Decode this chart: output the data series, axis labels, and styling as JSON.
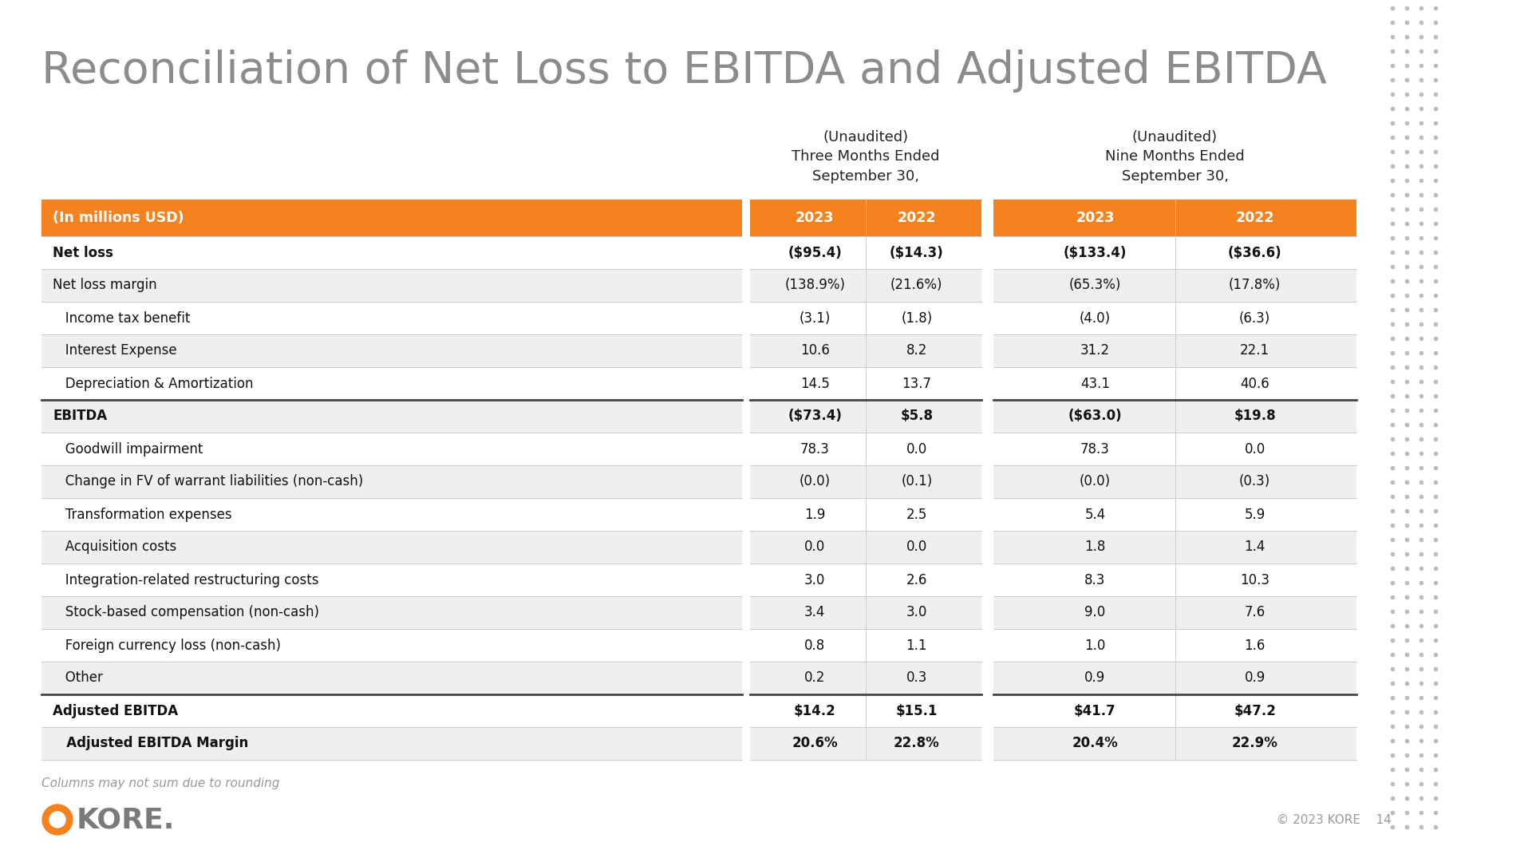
{
  "title": "Reconciliation of Net Loss to EBITDA and Adjusted EBITDA",
  "title_color": "#8c8c8c",
  "background_color": "#ffffff",
  "orange_color": "#F5821F",
  "header_text_color": "#ffffff",
  "col_header_unaudited_3m": "(Unaudited)\nThree Months Ended\nSeptember 30,",
  "col_header_unaudited_9m": "(Unaudited)\nNine Months Ended\nSeptember 30,",
  "columns": [
    "(In millions USD)",
    "2023",
    "2022",
    "2023",
    "2022"
  ],
  "rows": [
    {
      "label": "Net loss",
      "bold": true,
      "indent": false,
      "vals": [
        "($95.4)",
        "($14.3)",
        "($133.4)",
        "($36.6)"
      ],
      "val_bold": true
    },
    {
      "label": "Net loss margin",
      "bold": false,
      "indent": false,
      "vals": [
        "(138.9%)",
        "(21.6%)",
        "(65.3%)",
        "(17.8%)"
      ],
      "val_bold": false
    },
    {
      "label": "   Income tax benefit",
      "bold": false,
      "indent": false,
      "vals": [
        "(3.1)",
        "(1.8)",
        "(4.0)",
        "(6.3)"
      ],
      "val_bold": false
    },
    {
      "label": "   Interest Expense",
      "bold": false,
      "indent": false,
      "vals": [
        "10.6",
        "8.2",
        "31.2",
        "22.1"
      ],
      "val_bold": false
    },
    {
      "label": "   Depreciation & Amortization",
      "bold": false,
      "indent": false,
      "vals": [
        "14.5",
        "13.7",
        "43.1",
        "40.6"
      ],
      "val_bold": false
    },
    {
      "label": "EBITDA",
      "bold": true,
      "indent": false,
      "vals": [
        "($73.4)",
        "$5.8",
        "($63.0)",
        "$19.8"
      ],
      "val_bold": true,
      "thick_top": true
    },
    {
      "label": "   Goodwill impairment",
      "bold": false,
      "indent": false,
      "vals": [
        "78.3",
        "0.0",
        "78.3",
        "0.0"
      ],
      "val_bold": false
    },
    {
      "label": "   Change in FV of warrant liabilities (non-cash)",
      "bold": false,
      "indent": false,
      "vals": [
        "(0.0)",
        "(0.1)",
        "(0.0)",
        "(0.3)"
      ],
      "val_bold": false
    },
    {
      "label": "   Transformation expenses",
      "bold": false,
      "indent": false,
      "vals": [
        "1.9",
        "2.5",
        "5.4",
        "5.9"
      ],
      "val_bold": false
    },
    {
      "label": "   Acquisition costs",
      "bold": false,
      "indent": false,
      "vals": [
        "0.0",
        "0.0",
        "1.8",
        "1.4"
      ],
      "val_bold": false
    },
    {
      "label": "   Integration-related restructuring costs",
      "bold": false,
      "indent": false,
      "vals": [
        "3.0",
        "2.6",
        "8.3",
        "10.3"
      ],
      "val_bold": false
    },
    {
      "label": "   Stock-based compensation (non-cash)",
      "bold": false,
      "indent": false,
      "vals": [
        "3.4",
        "3.0",
        "9.0",
        "7.6"
      ],
      "val_bold": false
    },
    {
      "label": "   Foreign currency loss (non-cash)",
      "bold": false,
      "indent": false,
      "vals": [
        "0.8",
        "1.1",
        "1.0",
        "1.6"
      ],
      "val_bold": false
    },
    {
      "label": "   Other",
      "bold": false,
      "indent": false,
      "vals": [
        "0.2",
        "0.3",
        "0.9",
        "0.9"
      ],
      "val_bold": false
    },
    {
      "label": "Adjusted EBITDA",
      "bold": true,
      "indent": false,
      "vals": [
        "$14.2",
        "$15.1",
        "$41.7",
        "$47.2"
      ],
      "val_bold": true,
      "thick_top": true
    },
    {
      "label": "   Adjusted EBITDA Margin",
      "bold": true,
      "indent": false,
      "vals": [
        "20.6%",
        "22.8%",
        "20.4%",
        "22.9%"
      ],
      "val_bold": true
    }
  ],
  "footer_note": "Columns may not sum due to rounding",
  "footer_copyright": "© 2023 KORE",
  "footer_page": "14",
  "dot_color": "#bbbbbb"
}
